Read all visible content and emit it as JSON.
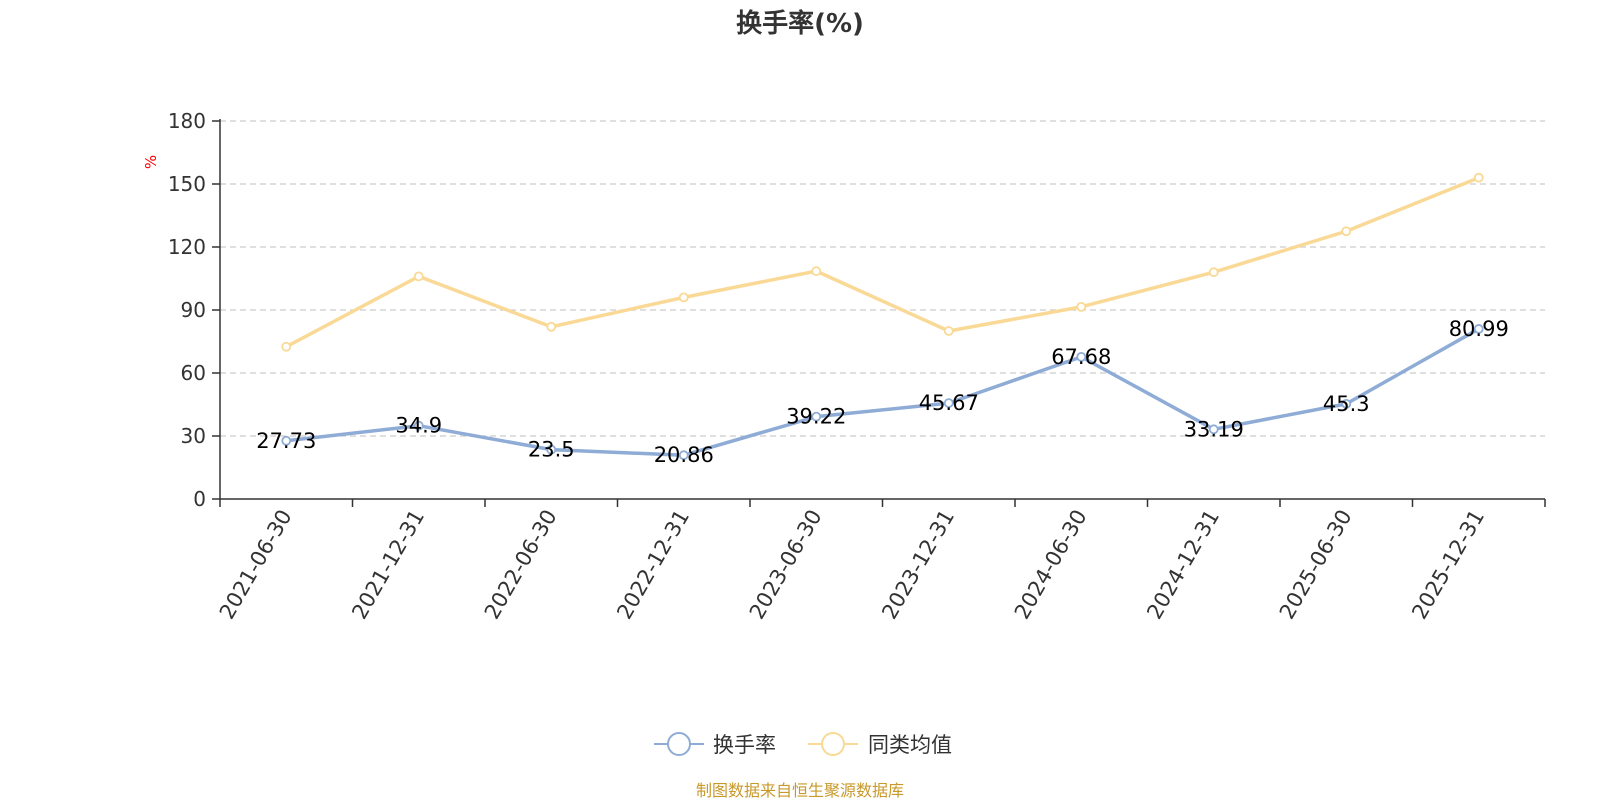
{
  "chart_data": {
    "type": "line",
    "title": "换手率(%)",
    "ylabel": "%",
    "ylim": [
      0,
      180
    ],
    "yticks": [
      "0",
      "30",
      "60",
      "90",
      "120",
      "150",
      "180"
    ],
    "categories": [
      "2021-06-30",
      "2021-12-31",
      "2022-06-30",
      "2022-12-31",
      "2023-06-30",
      "2023-12-31",
      "2024-06-30",
      "2024-12-31",
      "2025-06-30",
      "2025-12-31"
    ],
    "series": [
      {
        "name": "换手率",
        "color": "#8eacd6",
        "values": [
          27.73,
          34.9,
          23.5,
          20.86,
          39.22,
          45.67,
          67.68,
          33.19,
          45.3,
          80.99
        ],
        "labels": [
          "27.73",
          "34.9",
          "23.5",
          "20.86",
          "39.22",
          "45.67",
          "67.68",
          "33.19",
          "45.3",
          "80.99"
        ]
      },
      {
        "name": "同类均值",
        "color": "#f9d995",
        "values": [
          72.5,
          106,
          82,
          96,
          108.5,
          80,
          91.5,
          108,
          127.5,
          153
        ]
      }
    ],
    "grid": true,
    "legend": "bottom-center",
    "unit_color": "#ff0000"
  },
  "source": {
    "text": "制图数据来自恒生聚源数据库",
    "color": "#c8992b"
  }
}
